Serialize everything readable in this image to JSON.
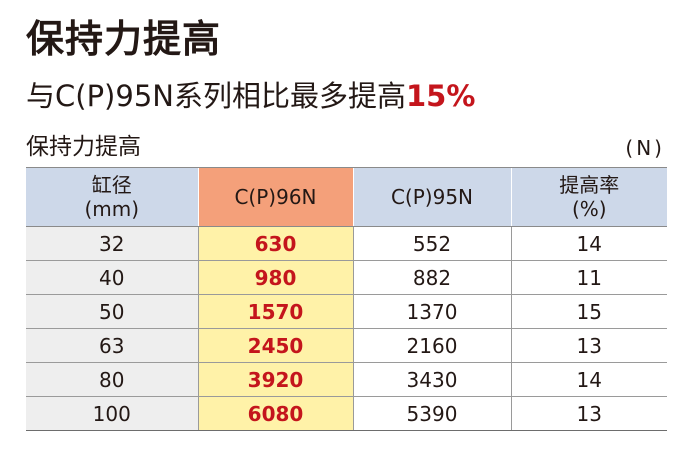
{
  "title": "保持力提高",
  "subtitle": {
    "prefix": "与C(P)95N系列相比最多提高",
    "highlight": "15%"
  },
  "caption": "保持力提高",
  "unit": "(N)",
  "table": {
    "headers": {
      "bore_line1": "缸径",
      "bore_line2": "(mm)",
      "new_model": "C(P)96N",
      "old_model": "C(P)95N",
      "rate_line1": "提高率",
      "rate_line2": "(%)"
    },
    "rows": [
      {
        "bore": "32",
        "new": "630",
        "old": "552",
        "rate": "14"
      },
      {
        "bore": "40",
        "new": "980",
        "old": "882",
        "rate": "11"
      },
      {
        "bore": "50",
        "new": "1570",
        "old": "1370",
        "rate": "15"
      },
      {
        "bore": "63",
        "new": "2450",
        "old": "2160",
        "rate": "13"
      },
      {
        "bore": "80",
        "new": "3920",
        "old": "3430",
        "rate": "14"
      },
      {
        "bore": "100",
        "new": "6080",
        "old": "5390",
        "rate": "13"
      }
    ]
  },
  "colors": {
    "highlight_red": "#c4151c",
    "header_blue": "#cdd8e9",
    "header_orange": "#f4a07a",
    "column_yellow": "#fff2a8",
    "first_col_gray": "#eeeeee"
  }
}
